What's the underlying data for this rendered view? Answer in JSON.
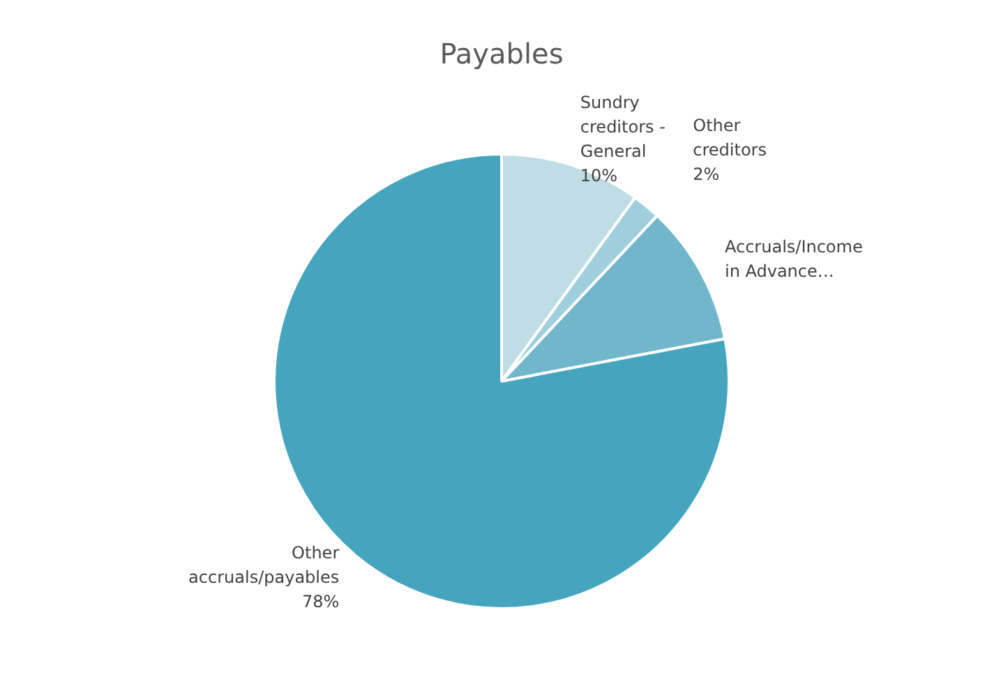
{
  "chart_data": {
    "type": "pie",
    "title": "Payables",
    "categories": [
      "Sundry creditors - General",
      "Other creditors",
      "Accruals/Income in Advance…",
      "Other accruals/payables"
    ],
    "values": [
      10,
      2,
      10,
      78
    ],
    "value_labels": [
      "10%",
      "2%",
      null,
      "78%"
    ],
    "colors": [
      "#c0dde6",
      "#9fcfdd",
      "#72b6cc",
      "#46a5be"
    ]
  }
}
